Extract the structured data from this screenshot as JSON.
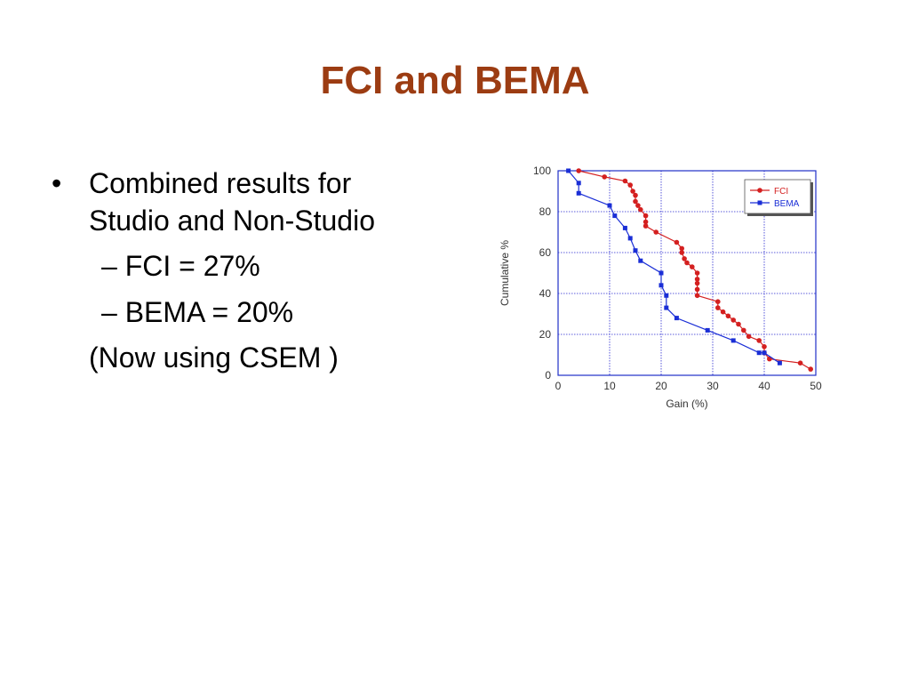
{
  "slide": {
    "title": "FCI and BEMA",
    "bullets": {
      "main_line1": "Combined results for",
      "main_line2": "Studio and Non-Studio",
      "sub1": "FCI = 27%",
      "sub2": "BEMA = 20%",
      "note": "(Now using CSEM )"
    },
    "bullet_glyph": "•",
    "dash_glyph": "–"
  },
  "chart_data": {
    "type": "line",
    "xlabel": "Gain (%)",
    "ylabel": "Cumulative %",
    "xlim": [
      0,
      50
    ],
    "ylim": [
      0,
      100
    ],
    "xticks": [
      0,
      10,
      20,
      30,
      40,
      50
    ],
    "yticks": [
      0,
      20,
      40,
      60,
      80,
      100
    ],
    "grid": true,
    "legend_position": "top-right",
    "series": [
      {
        "name": "FCI",
        "color": "#d42020",
        "marker": "circle",
        "x": [
          4,
          9,
          13,
          14,
          14.5,
          15,
          15,
          15.5,
          16,
          17,
          17,
          17,
          19,
          23,
          24,
          24,
          24.5,
          25,
          26,
          27,
          27,
          27,
          27,
          27,
          31,
          31,
          32,
          33,
          34,
          35,
          36,
          37,
          39,
          40,
          40,
          41,
          47,
          49
        ],
        "y": [
          100,
          97,
          95,
          93,
          90,
          88,
          85,
          83,
          81,
          78,
          75,
          73,
          70,
          65,
          62,
          60,
          57,
          55,
          53,
          50,
          47,
          45,
          42,
          39,
          36,
          33,
          31,
          29,
          27,
          25,
          22,
          19,
          17,
          14,
          11,
          8,
          6,
          3
        ]
      },
      {
        "name": "BEMA",
        "color": "#1a2ed6",
        "marker": "square",
        "x": [
          2,
          4,
          4,
          10,
          11,
          13,
          14,
          15,
          16,
          20,
          20,
          21,
          21,
          23,
          29,
          34,
          39,
          40,
          43
        ],
        "y": [
          100,
          94,
          89,
          83,
          78,
          72,
          67,
          61,
          56,
          50,
          44,
          39,
          33,
          28,
          22,
          17,
          11,
          11,
          6
        ]
      }
    ]
  }
}
